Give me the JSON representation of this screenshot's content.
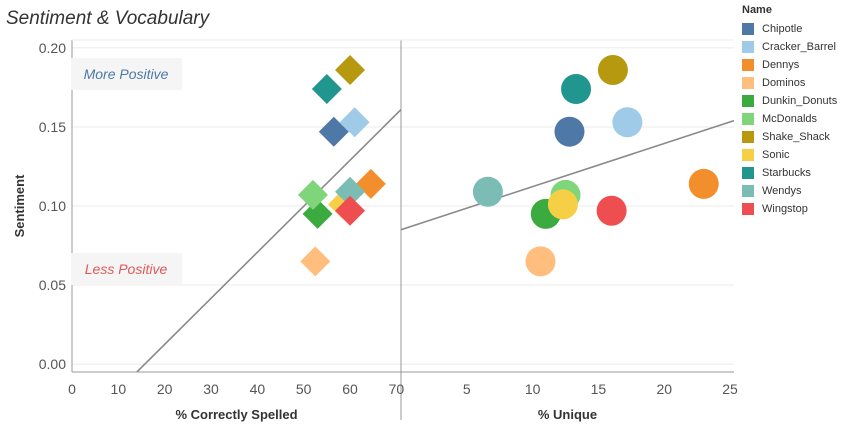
{
  "title": "Sentiment & Vocabulary",
  "legend": {
    "title": "Name",
    "items": [
      {
        "name": "Chipotle",
        "color": "#4e79a7"
      },
      {
        "name": "Cracker_Barrel",
        "color": "#a0cbe8"
      },
      {
        "name": "Dennys",
        "color": "#f28e2b"
      },
      {
        "name": "Dominos",
        "color": "#ffbe7d"
      },
      {
        "name": "Dunkin_Donuts",
        "color": "#3bab3f"
      },
      {
        "name": "McDonalds",
        "color": "#7fd67a"
      },
      {
        "name": "Shake_Shack",
        "color": "#b6990f"
      },
      {
        "name": "Sonic",
        "color": "#f5cf45"
      },
      {
        "name": "Starbucks",
        "color": "#21968f"
      },
      {
        "name": "Wendys",
        "color": "#7bbdb4"
      },
      {
        "name": "Wingstop",
        "color": "#ef4e51"
      }
    ]
  },
  "annotations": {
    "more_positive": "More Positive",
    "less_positive": "Less Positive",
    "more_color": "#4e79a7",
    "less_color": "#e15759"
  },
  "chart_data": {
    "type": "scatter",
    "ylabel": "Sentiment",
    "ylim": [
      -0.005,
      0.205
    ],
    "yticks": [
      "0.00",
      "0.05",
      "0.10",
      "0.15",
      "0.20"
    ],
    "panels": [
      {
        "xlabel": "% Correctly Spelled",
        "xlim": [
          0,
          71
        ],
        "xticks": [
          "0",
          "10",
          "20",
          "30",
          "40",
          "50",
          "60",
          "70"
        ],
        "marker": "diamond",
        "trend_line": [
          [
            14,
            -0.005
          ],
          [
            71,
            0.161
          ]
        ],
        "points": [
          {
            "name": "Chipotle",
            "x": 56.5,
            "y": 0.147
          },
          {
            "name": "Cracker_Barrel",
            "x": 61,
            "y": 0.153
          },
          {
            "name": "Dennys",
            "x": 64.5,
            "y": 0.114
          },
          {
            "name": "Dominos",
            "x": 52.5,
            "y": 0.065
          },
          {
            "name": "Dunkin_Donuts",
            "x": 53,
            "y": 0.095
          },
          {
            "name": "McDonalds",
            "x": 52,
            "y": 0.107
          },
          {
            "name": "Shake_Shack",
            "x": 60,
            "y": 0.186
          },
          {
            "name": "Sonic",
            "x": 58.5,
            "y": 0.101
          },
          {
            "name": "Starbucks",
            "x": 55,
            "y": 0.174
          },
          {
            "name": "Wendys",
            "x": 60,
            "y": 0.109
          },
          {
            "name": "Wingstop",
            "x": 60,
            "y": 0.097
          }
        ]
      },
      {
        "xlabel": "% Unique",
        "xlim": [
          0,
          25.3
        ],
        "xticks": [
          "5",
          "10",
          "15",
          "20",
          "25"
        ],
        "marker": "circle",
        "trend_line": [
          [
            0,
            0.085
          ],
          [
            25.3,
            0.154
          ]
        ],
        "points": [
          {
            "name": "Chipotle",
            "x": 12.8,
            "y": 0.147
          },
          {
            "name": "Cracker_Barrel",
            "x": 17.2,
            "y": 0.153
          },
          {
            "name": "Dennys",
            "x": 23,
            "y": 0.114
          },
          {
            "name": "Dominos",
            "x": 10.6,
            "y": 0.065
          },
          {
            "name": "Dunkin_Donuts",
            "x": 11,
            "y": 0.095
          },
          {
            "name": "McDonalds",
            "x": 12.5,
            "y": 0.107
          },
          {
            "name": "Shake_Shack",
            "x": 16.1,
            "y": 0.186
          },
          {
            "name": "Sonic",
            "x": 12.3,
            "y": 0.101
          },
          {
            "name": "Starbucks",
            "x": 13.3,
            "y": 0.174
          },
          {
            "name": "Wendys",
            "x": 6.6,
            "y": 0.109
          },
          {
            "name": "Wingstop",
            "x": 16,
            "y": 0.097
          }
        ]
      }
    ]
  }
}
